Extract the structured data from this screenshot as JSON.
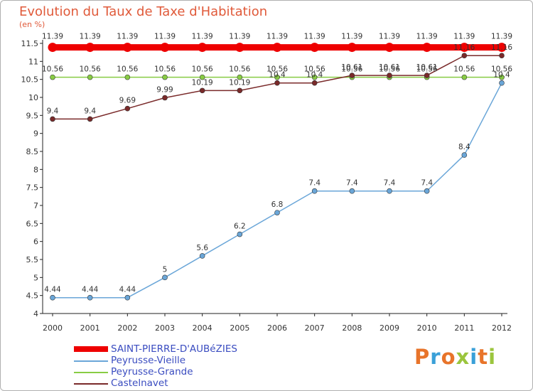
{
  "title": "Evolution du Taux de Taxe d'Habitation",
  "unit_label": "(en %)",
  "logo": {
    "text": "Proxiti",
    "letters": [
      {
        "ch": "P",
        "color": "#e8742a"
      },
      {
        "ch": "r",
        "color": "#3aa0d8"
      },
      {
        "ch": "o",
        "color": "#e8742a"
      },
      {
        "ch": "x",
        "color": "#9bc53d"
      },
      {
        "ch": "i",
        "color": "#3aa0d8"
      },
      {
        "ch": "t",
        "color": "#e8742a"
      },
      {
        "ch": "i",
        "color": "#9bc53d"
      }
    ]
  },
  "chart_data": {
    "type": "line",
    "title": "Evolution du Taux de Taxe d'Habitation",
    "ylabel": "(en %)",
    "xlabel": "",
    "ylim": [
      4,
      11.5
    ],
    "yticks": [
      "4",
      "4.5",
      "5",
      "5.5",
      "6",
      "6.5",
      "7",
      "7.5",
      "8",
      "8.5",
      "9",
      "9.5",
      "10",
      "10.5",
      "11",
      "11.5"
    ],
    "x": [
      "2000",
      "2001",
      "2002",
      "2003",
      "2004",
      "2005",
      "2006",
      "2007",
      "2008",
      "2009",
      "2010",
      "2011",
      "2012"
    ],
    "grid": false,
    "legend_position": "bottom-left",
    "series": [
      {
        "name": "SAINT-PIERRE-D'AUBéZIES",
        "color": "#ee0000",
        "values": [
          11.39,
          11.39,
          11.39,
          11.39,
          11.39,
          11.39,
          11.39,
          11.39,
          11.39,
          11.39,
          11.39,
          11.39,
          11.39
        ],
        "labels": [
          "11.39",
          "11.39",
          "11.39",
          "11.39",
          "11.39",
          "11.39",
          "11.39",
          "11.39",
          "11.39",
          "11.39",
          "11.39",
          "11.39",
          "11.39"
        ]
      },
      {
        "name": "Peyrusse-Vieille",
        "color": "#6aa6d8",
        "values": [
          4.44,
          4.44,
          4.44,
          5,
          5.6,
          6.2,
          6.8,
          7.4,
          7.4,
          7.4,
          7.4,
          8.4,
          10.4
        ],
        "labels": [
          "4.44",
          "4.44",
          "4.44",
          "5",
          "5.6",
          "6.2",
          "6.8",
          "7.4",
          "7.4",
          "7.4",
          "7.4",
          "8.4",
          "10.4"
        ]
      },
      {
        "name": "Peyrusse-Grande",
        "color": "#88cc44",
        "values": [
          10.56,
          10.56,
          10.56,
          10.56,
          10.56,
          10.56,
          10.56,
          10.56,
          10.56,
          10.56,
          10.56,
          10.56,
          10.56
        ],
        "labels": [
          "10.56",
          "10.56",
          "10.56",
          "10.56",
          "10.56",
          "10.56",
          "10.56",
          "10.56",
          "10.56",
          "10.56",
          "10.56",
          "10.56",
          "10.56"
        ]
      },
      {
        "name": "Castelnavet",
        "color": "#7a2a2a",
        "values": [
          9.4,
          9.4,
          9.69,
          9.99,
          10.19,
          10.19,
          10.4,
          10.4,
          10.61,
          10.61,
          10.61,
          11.16,
          11.16
        ],
        "labels": [
          "9.4",
          "9.4",
          "9.69",
          "9.99",
          "10.19",
          "10.19",
          "10.4",
          "10.4",
          "10.61",
          "10.61",
          "10.61",
          "11.16",
          "11.16"
        ]
      }
    ]
  }
}
